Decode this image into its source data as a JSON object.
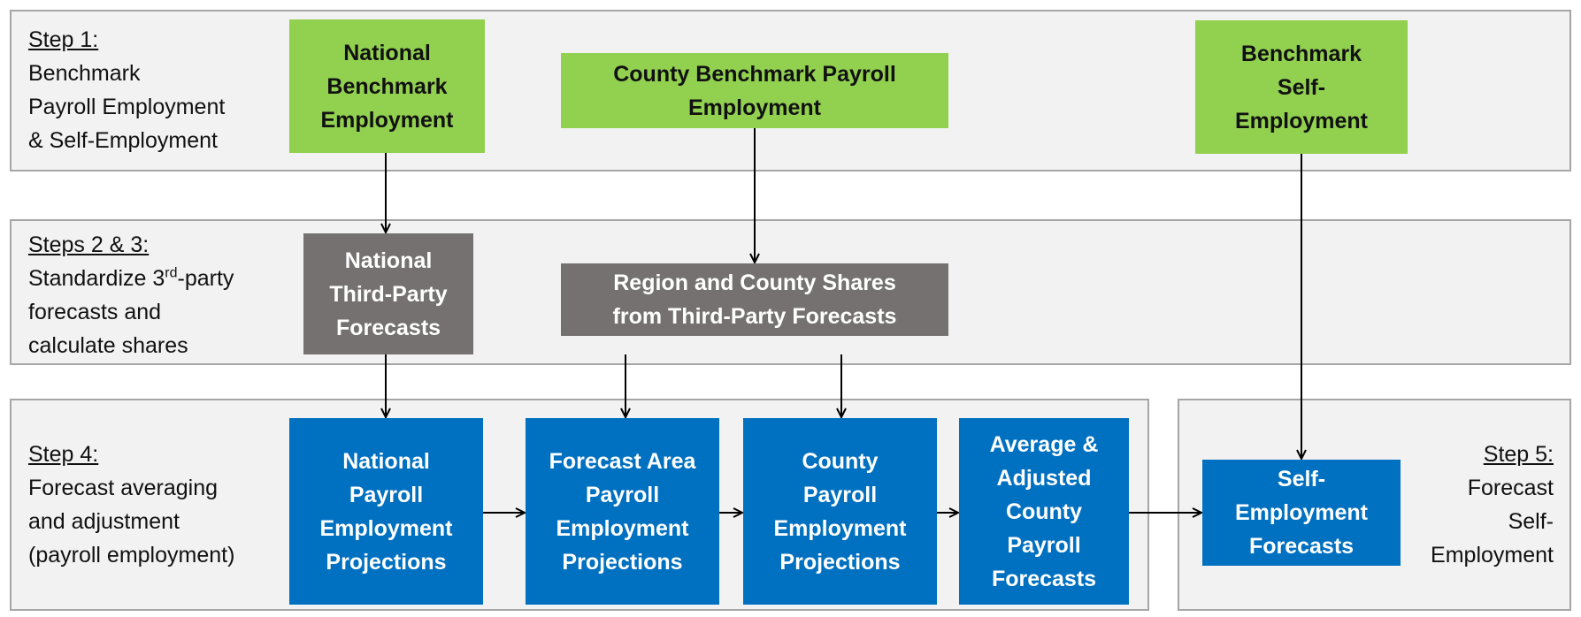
{
  "steps": [
    {
      "title": "Step 1:",
      "lines": [
        "Benchmark",
        "Payroll Employment",
        "& Self-Employment"
      ]
    },
    {
      "title": "Steps 2 & 3:",
      "lines": [
        [
          "Standardize 3",
          "rd",
          "-party"
        ],
        "forecasts and",
        "calculate shares"
      ]
    },
    {
      "title": "Step 4:",
      "lines": [
        "Forecast averaging",
        "and adjustment",
        "(payroll employment)"
      ]
    },
    {
      "title": "Step 5:",
      "lines": [
        "Forecast",
        "Self-",
        "Employment"
      ]
    }
  ],
  "nodes": [
    {
      "lines": [
        "National",
        "Benchmark",
        "Employment"
      ]
    },
    {
      "lines": [
        "County Benchmark Payroll",
        "Employment"
      ]
    },
    {
      "lines": [
        "Benchmark",
        "Self-",
        "Employment"
      ]
    },
    {
      "lines": [
        "National",
        "Third-Party",
        "Forecasts"
      ]
    },
    {
      "lines": [
        "Region and County Shares",
        "from Third-Party Forecasts"
      ]
    },
    {
      "lines": [
        "National",
        "Payroll",
        "Employment",
        "Projections"
      ]
    },
    {
      "lines": [
        "Forecast Area",
        "Payroll",
        "Employment",
        "Projections"
      ]
    },
    {
      "lines": [
        "County",
        "Payroll",
        "Employment",
        "Projections"
      ]
    },
    {
      "lines": [
        "Average &",
        "Adjusted",
        "County",
        "Payroll",
        "Forecasts"
      ]
    },
    {
      "lines": [
        "Self-",
        "Employment",
        "Forecasts"
      ]
    }
  ]
}
